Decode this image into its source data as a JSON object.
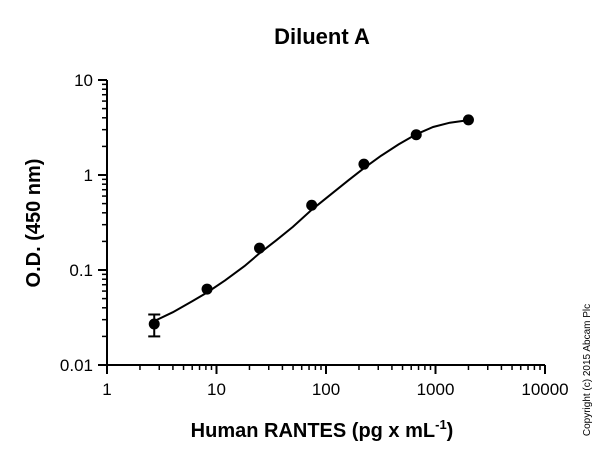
{
  "chart_data": {
    "type": "scatter",
    "title": "Diluent A",
    "xlabel": "Human RANTES (pg x mL",
    "xlabel_superscript": "-1",
    "xlabel_suffix": ")",
    "ylabel": "O.D. (450 nm)",
    "x_scale": "log",
    "y_scale": "log",
    "xlim": [
      1,
      10000
    ],
    "ylim": [
      0.01,
      10
    ],
    "x_ticks": [
      1,
      10,
      100,
      1000,
      10000
    ],
    "x_tick_labels": [
      "1",
      "10",
      "100",
      "1000",
      "10000"
    ],
    "y_ticks": [
      0.01,
      0.1,
      1,
      10
    ],
    "y_tick_labels": [
      "0.01",
      "0.1",
      "1",
      "10"
    ],
    "grid": false,
    "legend": "none",
    "series": [
      {
        "x": [
          2.7,
          8.2,
          24.7,
          74,
          222,
          667,
          2000
        ],
        "y": [
          0.027,
          0.063,
          0.17,
          0.48,
          1.3,
          2.65,
          3.8
        ],
        "y_error": [
          0.007,
          0,
          0,
          0,
          0,
          0,
          0
        ],
        "color": "#000000"
      }
    ],
    "fit_curve": {
      "x": [
        2.7,
        4,
        6,
        8.2,
        12,
        18,
        24.7,
        35,
        50,
        74,
        110,
        160,
        222,
        320,
        460,
        667,
        950,
        1350,
        2000
      ],
      "y": [
        0.029,
        0.036,
        0.047,
        0.058,
        0.078,
        0.11,
        0.15,
        0.205,
        0.285,
        0.43,
        0.62,
        0.88,
        1.18,
        1.6,
        2.1,
        2.68,
        3.2,
        3.55,
        3.78
      ],
      "color": "#000000"
    }
  },
  "copyright": "Copyright (c) 2015 Abcam Plc"
}
